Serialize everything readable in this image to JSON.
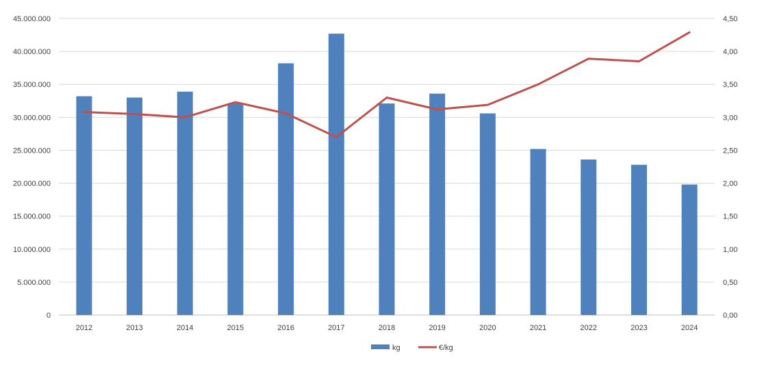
{
  "chart_data": {
    "type": "bar",
    "categories": [
      "2012",
      "2013",
      "2014",
      "2015",
      "2016",
      "2017",
      "2018",
      "2019",
      "2020",
      "2021",
      "2022",
      "2023",
      "2024"
    ],
    "series": [
      {
        "name": "kg",
        "type": "bar",
        "axis": "left",
        "color": "#4F81BD",
        "values": [
          33200000,
          33000000,
          33900000,
          32100000,
          38200000,
          42700000,
          32100000,
          33600000,
          30600000,
          25200000,
          23600000,
          22800000,
          19800000
        ]
      },
      {
        "name": "€/kg",
        "type": "line",
        "axis": "right",
        "color": "#C0504D",
        "values": [
          3.08,
          3.05,
          3.0,
          3.23,
          3.06,
          2.7,
          3.3,
          3.12,
          3.19,
          3.5,
          3.89,
          3.85,
          4.29
        ]
      }
    ],
    "y_left": {
      "lim": [
        0,
        45000000
      ],
      "ticks": [
        0,
        5000000,
        10000000,
        15000000,
        20000000,
        25000000,
        30000000,
        35000000,
        40000000,
        45000000
      ],
      "tick_labels": [
        "0",
        "5.000.000",
        "10.000.000",
        "15.000.000",
        "20.000.000",
        "25.000.000",
        "30.000.000",
        "35.000.000",
        "40.000.000",
        "45.000.000"
      ]
    },
    "y_right": {
      "lim": [
        0,
        4.5
      ],
      "ticks": [
        0,
        0.5,
        1.0,
        1.5,
        2.0,
        2.5,
        3.0,
        3.5,
        4.0,
        4.5
      ],
      "tick_labels": [
        "0,00",
        "0,50",
        "1,00",
        "1,50",
        "2,00",
        "2,50",
        "3,00",
        "3,50",
        "4,00",
        "4,50"
      ]
    },
    "grid": true,
    "gridColor": "#D9D9D9",
    "legend": "bottom-center",
    "title": "",
    "xlabel": "",
    "ylabel": ""
  }
}
